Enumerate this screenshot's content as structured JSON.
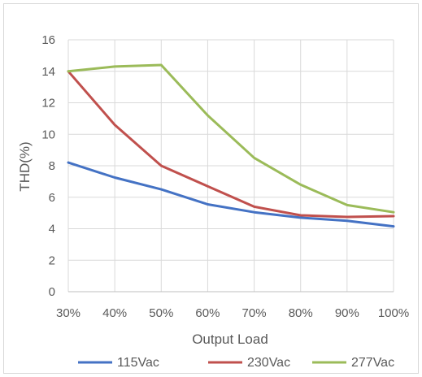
{
  "chart_data": {
    "type": "line",
    "categories": [
      "30%",
      "40%",
      "50%",
      "60%",
      "70%",
      "80%",
      "90%",
      "100%"
    ],
    "series": [
      {
        "name": "115Vac",
        "color": "#4472c4",
        "values": [
          8.2,
          7.25,
          6.5,
          5.55,
          5.05,
          4.7,
          4.5,
          4.15
        ]
      },
      {
        "name": "230Vac",
        "color": "#c0504d",
        "values": [
          14.0,
          10.6,
          8.0,
          6.7,
          5.4,
          4.85,
          4.75,
          4.8
        ]
      },
      {
        "name": "277Vac",
        "color": "#9bbb59",
        "values": [
          14.0,
          14.3,
          14.4,
          11.2,
          8.5,
          6.8,
          5.5,
          5.05
        ]
      }
    ],
    "yticks": [
      "0",
      "2",
      "4",
      "6",
      "8",
      "10",
      "12",
      "14",
      "16"
    ],
    "ylim": [
      0,
      16
    ],
    "xlabel": "Output Load",
    "ylabel": "THD(%)",
    "grid": true,
    "legend_position": "bottom"
  }
}
